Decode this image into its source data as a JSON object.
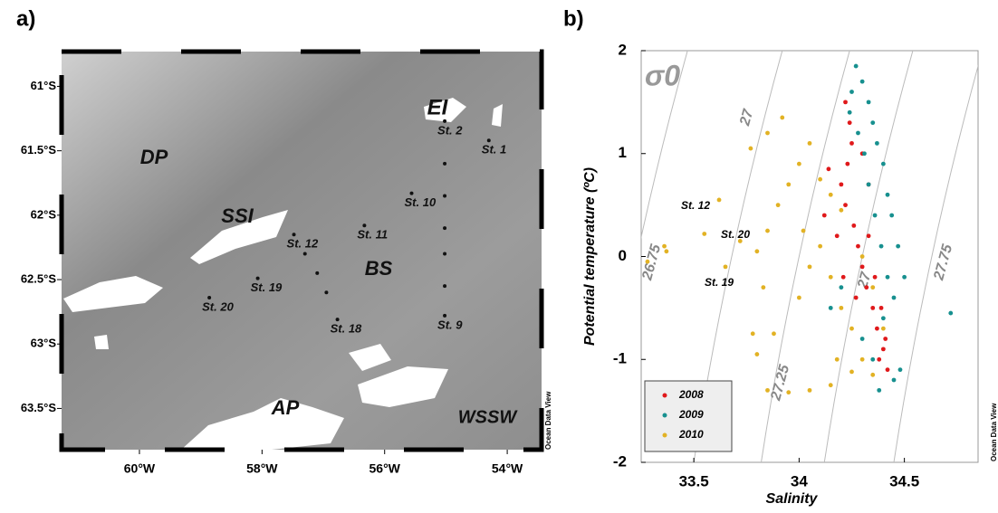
{
  "chart_data": [
    {
      "type": "map",
      "panel_label": "a)",
      "xlim": [
        -61.27,
        -53.44
      ],
      "ylim": [
        -63.82,
        -60.73
      ],
      "xticks": [
        {
          "value": -60,
          "label": "60°W"
        },
        {
          "value": -58,
          "label": "58°W"
        },
        {
          "value": -56,
          "label": "56°W"
        },
        {
          "value": -54,
          "label": "54°W"
        }
      ],
      "yticks": [
        {
          "value": -61,
          "label": "61°S"
        },
        {
          "value": -61.5,
          "label": "61.5°S"
        },
        {
          "value": -62,
          "label": "62°S"
        },
        {
          "value": -62.5,
          "label": "62.5°S"
        },
        {
          "value": -63,
          "label": "63°S"
        },
        {
          "value": -63.5,
          "label": "63.5°S"
        }
      ],
      "annotations": [
        "DP",
        "SSI",
        "BS",
        "EI",
        "AP",
        "WSSW"
      ],
      "credit": "Ocean Data View",
      "stations": {
        "x": [
          -54.3,
          -55.02,
          -55.02,
          -55.02,
          -55.02,
          -55.02,
          -55.02,
          -55.02,
          -55.56,
          -56.33,
          -57.48,
          -57.3,
          -57.1,
          -56.95,
          -56.77,
          -58.07,
          -58.86
        ],
        "y": [
          -61.42,
          -61.27,
          -61.6,
          -61.85,
          -62.1,
          -62.3,
          -62.55,
          -62.78,
          -61.83,
          -62.08,
          -62.15,
          -62.3,
          -62.45,
          -62.6,
          -62.81,
          -62.49,
          -62.64
        ],
        "labels": [
          "St. 1",
          "St. 2",
          null,
          null,
          null,
          null,
          null,
          "St. 9",
          "St. 10",
          "St. 11",
          "St. 12",
          null,
          null,
          null,
          "St. 18",
          "St. 19",
          "St. 20"
        ]
      },
      "color": "#111111"
    },
    {
      "type": "scatter",
      "panel_label": "b)",
      "x_label": "Salinity",
      "y_label": "Potential temperature (ºC)",
      "xlim": [
        33.25,
        34.85
      ],
      "ylim": [
        -2,
        2
      ],
      "xticks": [
        33.5,
        34,
        34.5
      ],
      "yticks": [
        -2,
        -1,
        0,
        1,
        2
      ],
      "symbol": "σ0",
      "isopycnal_labels": [
        "26.75",
        "27",
        "27.25",
        "27",
        "27.75"
      ],
      "annotations": [
        "St. 12",
        "St. 20",
        "St. 19"
      ],
      "credit": "Ocean Data View",
      "legend": "bottom-left",
      "series": [
        {
          "name": "2008",
          "color": "#e0191b",
          "x": [
            34.22,
            34.24,
            34.25,
            34.23,
            34.2,
            34.22,
            34.26,
            34.28,
            34.3,
            34.32,
            34.35,
            34.37,
            34.4,
            34.42,
            34.14,
            34.12,
            34.18,
            34.21,
            34.33,
            34.36,
            34.39,
            34.41,
            34.3,
            34.33,
            34.27,
            34.38
          ],
          "values": [
            1.5,
            1.3,
            1.1,
            0.9,
            0.7,
            0.5,
            0.3,
            0.1,
            -0.1,
            -0.3,
            -0.5,
            -0.7,
            -0.9,
            -1.1,
            0.85,
            0.4,
            0.2,
            -0.2,
            0.2,
            -0.2,
            -0.5,
            -0.8,
            1.0,
            0.7,
            -0.4,
            -1.0
          ]
        },
        {
          "name": "2009",
          "color": "#17908f",
          "x": [
            34.27,
            34.3,
            34.33,
            34.35,
            34.37,
            34.4,
            34.42,
            34.44,
            34.47,
            34.5,
            34.25,
            34.24,
            34.28,
            34.31,
            34.33,
            34.36,
            34.39,
            34.42,
            34.45,
            34.3,
            34.35,
            34.38,
            34.45,
            34.48,
            34.2,
            34.15,
            34.72,
            34.4
          ],
          "values": [
            1.85,
            1.7,
            1.5,
            1.3,
            1.1,
            0.9,
            0.6,
            0.4,
            0.1,
            -0.2,
            1.6,
            1.4,
            1.2,
            1.0,
            0.7,
            0.4,
            0.1,
            -0.2,
            -0.4,
            -0.8,
            -1.0,
            -1.3,
            -1.2,
            -1.1,
            -0.3,
            -0.5,
            -0.55,
            -0.6
          ]
        },
        {
          "name": "2010",
          "color": "#e2b224",
          "x": [
            33.36,
            33.37,
            33.28,
            33.62,
            33.55,
            33.77,
            33.85,
            33.92,
            33.72,
            33.65,
            33.8,
            33.85,
            33.9,
            33.95,
            34.0,
            34.05,
            34.1,
            34.15,
            34.2,
            33.83,
            33.78,
            33.8,
            33.88,
            34.0,
            34.05,
            34.1,
            34.15,
            34.2,
            34.25,
            34.3,
            33.85,
            33.95,
            34.05,
            34.15,
            34.25,
            34.35,
            34.18,
            34.3,
            34.35,
            34.4,
            34.02
          ],
          "values": [
            0.1,
            0.05,
            -0.05,
            0.55,
            0.22,
            1.05,
            1.2,
            1.35,
            0.15,
            -0.1,
            0.05,
            0.25,
            0.5,
            0.7,
            0.9,
            1.1,
            0.75,
            0.6,
            0.45,
            -0.3,
            -0.75,
            -0.95,
            -0.75,
            -0.4,
            -0.1,
            0.1,
            -0.2,
            -0.5,
            -0.7,
            -1.0,
            -1.3,
            -1.32,
            -1.3,
            -1.25,
            -1.12,
            -1.15,
            -1.0,
            0.0,
            -0.3,
            -0.7,
            0.25
          ]
        }
      ]
    }
  ]
}
